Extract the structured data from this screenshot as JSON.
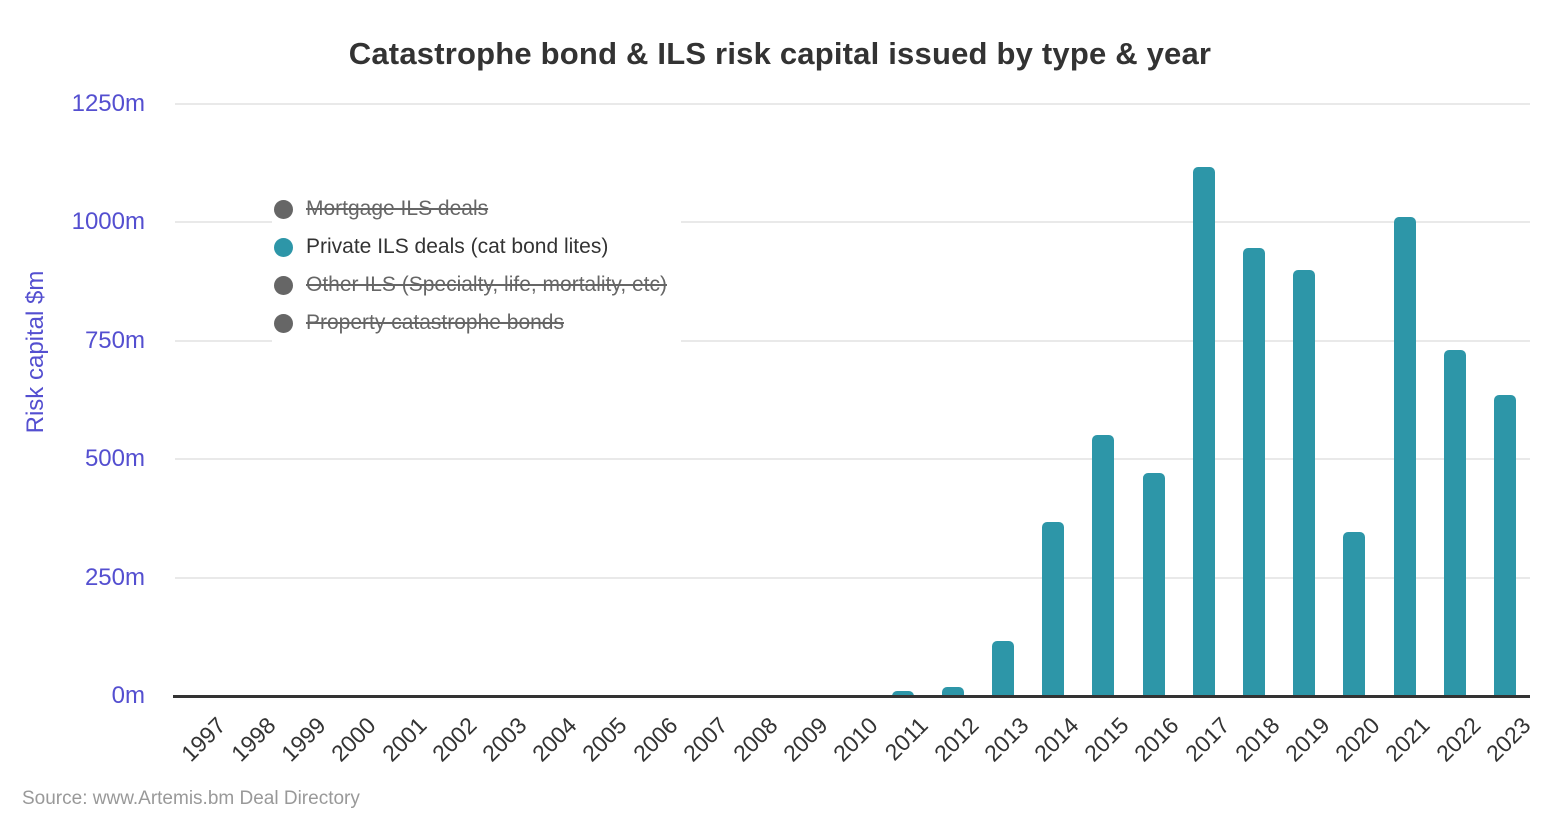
{
  "title": "Catastrophe bond & ILS risk capital issued by type & year",
  "source_note": "Source: www.Artemis.bm Deal Directory",
  "colors": {
    "bar_teal": "#2d96a8",
    "disabled_gray": "#666666",
    "axis_label_purple": "#544fd0",
    "title_text": "#333333",
    "gridline": "#e9e9e9",
    "source_text": "#999999"
  },
  "chart_data": {
    "type": "bar",
    "title": "Catastrophe bond & ILS risk capital issued by type & year",
    "xlabel": "",
    "ylabel": "Risk capital $m",
    "ylim": [
      0,
      1250
    ],
    "ytick_interval": 250,
    "ytick_labels": [
      "0m",
      "250m",
      "500m",
      "750m",
      "1000m",
      "1250m"
    ],
    "grid": true,
    "legend_position": "inside-top-left",
    "categories": [
      "1997",
      "1998",
      "1999",
      "2000",
      "2001",
      "2002",
      "2003",
      "2004",
      "2005",
      "2006",
      "2007",
      "2008",
      "2009",
      "2010",
      "2011",
      "2012",
      "2013",
      "2014",
      "2015",
      "2016",
      "2017",
      "2018",
      "2019",
      "2020",
      "2021",
      "2022",
      "2023"
    ],
    "series": [
      {
        "name": "Mortgage ILS deals",
        "enabled": false,
        "color": "#666666"
      },
      {
        "name": "Private ILS deals (cat bond lites)",
        "enabled": true,
        "color": "#2d96a8",
        "values": [
          0,
          0,
          0,
          0,
          0,
          0,
          0,
          0,
          0,
          0,
          0,
          0,
          0,
          0,
          10,
          18,
          115,
          368,
          550,
          470,
          1116,
          945,
          898,
          347,
          1010,
          731,
          635
        ]
      },
      {
        "name": "Other ILS (Specialty, life, mortality, etc)",
        "enabled": false,
        "color": "#666666"
      },
      {
        "name": "Property catastrophe bonds",
        "enabled": false,
        "color": "#666666"
      }
    ]
  }
}
